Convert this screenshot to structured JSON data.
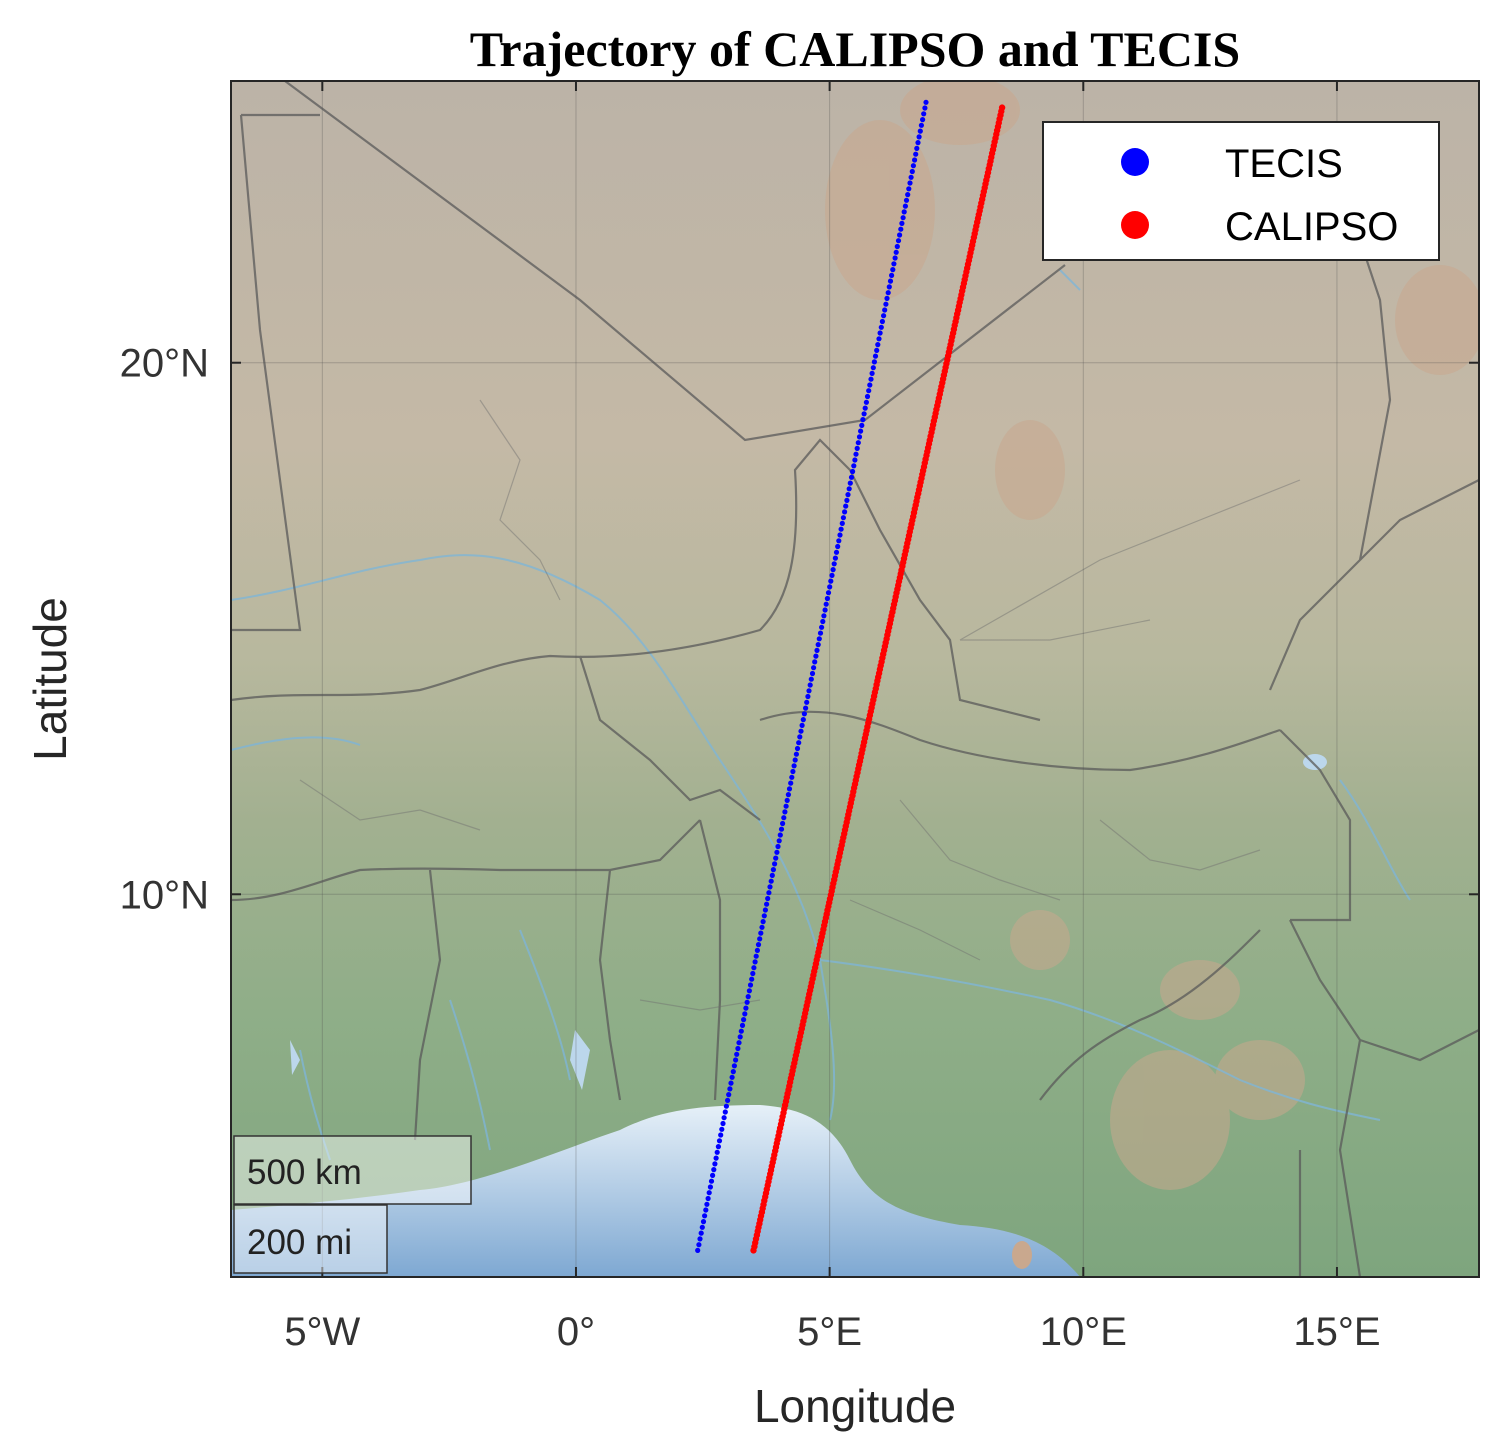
{
  "chart_data": {
    "type": "scatter",
    "title": "Trajectory of CALIPSO and TECIS",
    "xlabel": "Longitude",
    "ylabel": "Latitude",
    "xlim": [
      -6.8,
      17.8
    ],
    "ylim": [
      2.8,
      25.3
    ],
    "x_ticks": [
      {
        "value": -5,
        "label": "5°W"
      },
      {
        "value": 0,
        "label": "0°"
      },
      {
        "value": 5,
        "label": "5°E"
      },
      {
        "value": 10,
        "label": "10°E"
      },
      {
        "value": 15,
        "label": "15°E"
      }
    ],
    "y_ticks": [
      {
        "value": 10,
        "label": "10°N"
      },
      {
        "value": 20,
        "label": "20°N"
      }
    ],
    "grid": true,
    "legend_position": "top-right",
    "series": [
      {
        "name": "TECIS",
        "color": "#0000ff",
        "start": [
          2.4,
          3.3
        ],
        "end": [
          6.9,
          24.9
        ],
        "points": 200
      },
      {
        "name": "CALIPSO",
        "color": "#ff0000",
        "start": [
          3.5,
          3.3
        ],
        "end": [
          8.4,
          24.8
        ],
        "points": 300
      }
    ],
    "scale_bar": {
      "km_label": "500 km",
      "mi_label": "200 mi"
    }
  }
}
